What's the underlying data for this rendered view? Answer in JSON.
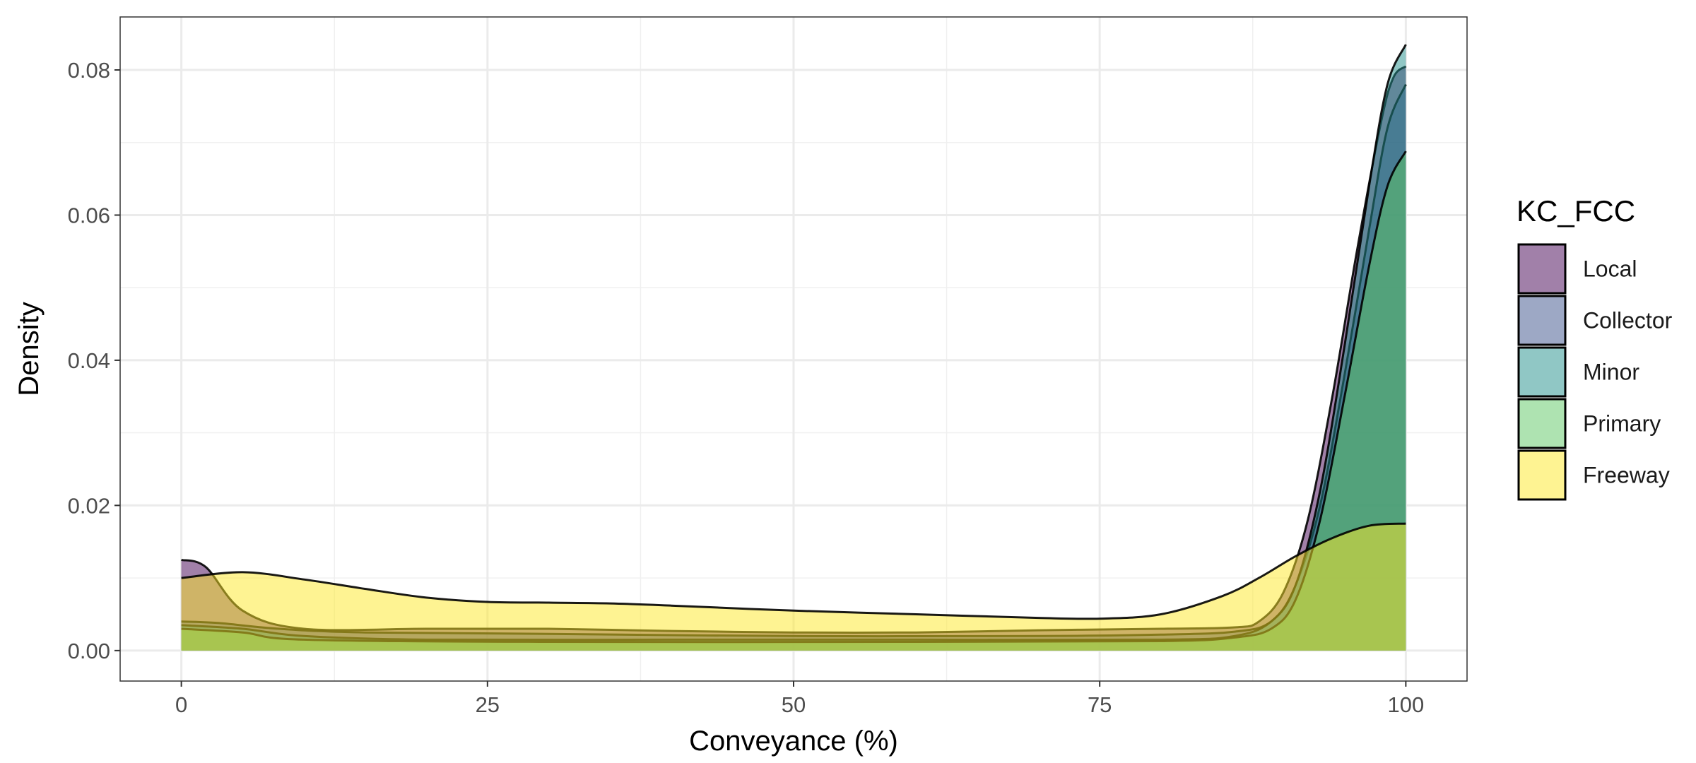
{
  "chart_data": {
    "type": "area",
    "subtype": "density",
    "xlabel": "Conveyance (%)",
    "ylabel": "Density",
    "xlim": [
      -5,
      105
    ],
    "ylim": [
      -0.0042,
      0.0873
    ],
    "x_ticks": [
      0,
      25,
      50,
      75,
      100
    ],
    "x_tick_labels": [
      "0",
      "25",
      "50",
      "75",
      "100"
    ],
    "y_ticks": [
      0,
      0.02,
      0.04,
      0.06,
      0.08
    ],
    "y_tick_labels": [
      "0.00",
      "0.02",
      "0.04",
      "0.06",
      "0.08"
    ],
    "grid": true,
    "legend": {
      "title": "KC_FCC",
      "placement": "right",
      "entries": [
        "Local",
        "Collector",
        "Minor",
        "Primary",
        "Freeway"
      ]
    },
    "series": [
      {
        "name": "Local",
        "color": "#440154",
        "points": [
          [
            0,
            0.0125
          ],
          [
            2,
            0.0115
          ],
          [
            5,
            0.0055
          ],
          [
            10,
            0.003
          ],
          [
            20,
            0.003
          ],
          [
            30,
            0.003
          ],
          [
            40,
            0.0027
          ],
          [
            50,
            0.0025
          ],
          [
            60,
            0.0025
          ],
          [
            70,
            0.0028
          ],
          [
            80,
            0.003
          ],
          [
            86,
            0.0032
          ],
          [
            88,
            0.004
          ],
          [
            90,
            0.008
          ],
          [
            92,
            0.018
          ],
          [
            94,
            0.035
          ],
          [
            96,
            0.055
          ],
          [
            98,
            0.073
          ],
          [
            99,
            0.079
          ],
          [
            100,
            0.0805
          ]
        ]
      },
      {
        "name": "Collector",
        "color": "#3B528B",
        "points": [
          [
            0,
            0.004
          ],
          [
            3,
            0.0038
          ],
          [
            8,
            0.003
          ],
          [
            15,
            0.0025
          ],
          [
            30,
            0.0023
          ],
          [
            50,
            0.002
          ],
          [
            70,
            0.002
          ],
          [
            80,
            0.0022
          ],
          [
            86,
            0.0026
          ],
          [
            89,
            0.004
          ],
          [
            91,
            0.009
          ],
          [
            93,
            0.02
          ],
          [
            95,
            0.038
          ],
          [
            97,
            0.058
          ],
          [
            98.5,
            0.072
          ],
          [
            100,
            0.078
          ]
        ]
      },
      {
        "name": "Minor",
        "color": "#21908C",
        "points": [
          [
            0,
            0.0035
          ],
          [
            5,
            0.003
          ],
          [
            10,
            0.002
          ],
          [
            20,
            0.0015
          ],
          [
            40,
            0.0015
          ],
          [
            60,
            0.0015
          ],
          [
            80,
            0.0015
          ],
          [
            86,
            0.002
          ],
          [
            89,
            0.004
          ],
          [
            91,
            0.009
          ],
          [
            93,
            0.022
          ],
          [
            95,
            0.042
          ],
          [
            97,
            0.064
          ],
          [
            98.5,
            0.078
          ],
          [
            100,
            0.0835
          ]
        ]
      },
      {
        "name": "Primary",
        "color": "#5DC863",
        "points": [
          [
            0,
            0.003
          ],
          [
            5,
            0.0025
          ],
          [
            10,
            0.0015
          ],
          [
            30,
            0.0012
          ],
          [
            60,
            0.0012
          ],
          [
            80,
            0.0013
          ],
          [
            86,
            0.0018
          ],
          [
            89,
            0.003
          ],
          [
            91,
            0.007
          ],
          [
            93,
            0.018
          ],
          [
            95,
            0.035
          ],
          [
            97,
            0.053
          ],
          [
            98.5,
            0.064
          ],
          [
            100,
            0.0688
          ]
        ]
      },
      {
        "name": "Freeway",
        "color": "#FDE725",
        "points": [
          [
            0,
            0.01
          ],
          [
            5,
            0.0108
          ],
          [
            10,
            0.0098
          ],
          [
            15,
            0.0085
          ],
          [
            20,
            0.0073
          ],
          [
            25,
            0.0067
          ],
          [
            30,
            0.0066
          ],
          [
            35,
            0.0065
          ],
          [
            40,
            0.0062
          ],
          [
            50,
            0.0055
          ],
          [
            60,
            0.005
          ],
          [
            70,
            0.0045
          ],
          [
            75,
            0.0044
          ],
          [
            80,
            0.005
          ],
          [
            85,
            0.0075
          ],
          [
            88,
            0.01
          ],
          [
            91,
            0.013
          ],
          [
            94,
            0.0155
          ],
          [
            97,
            0.0172
          ],
          [
            100,
            0.0175
          ]
        ]
      }
    ]
  }
}
